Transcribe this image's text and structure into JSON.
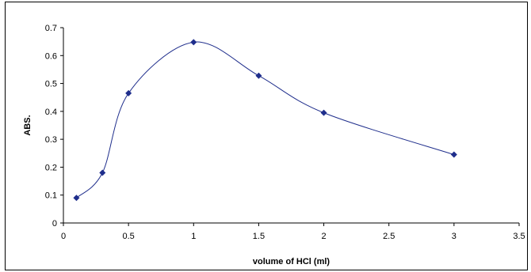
{
  "chart_data": {
    "type": "line",
    "title": "",
    "xlabel": "volume of HCl (ml)",
    "ylabel": "ABS.",
    "xlim": [
      0,
      3.5
    ],
    "ylim": [
      0,
      0.7
    ],
    "x_ticks": [
      "0",
      "0.5",
      "1",
      "1.5",
      "2",
      "2.5",
      "3",
      "3.5"
    ],
    "y_ticks": [
      "0",
      "0.1",
      "0.2",
      "0.3",
      "0.4",
      "0.5",
      "0.6",
      "0.7"
    ],
    "grid": false,
    "legend": "none",
    "smooth": true,
    "series": [
      {
        "x": [
          0.1,
          0.3,
          0.5,
          1,
          1.5,
          2,
          3
        ],
        "y": [
          0.09,
          0.18,
          0.465,
          0.648,
          0.528,
          0.395,
          0.245
        ],
        "color": "#1f2e8c",
        "marker": "diamond"
      }
    ]
  }
}
